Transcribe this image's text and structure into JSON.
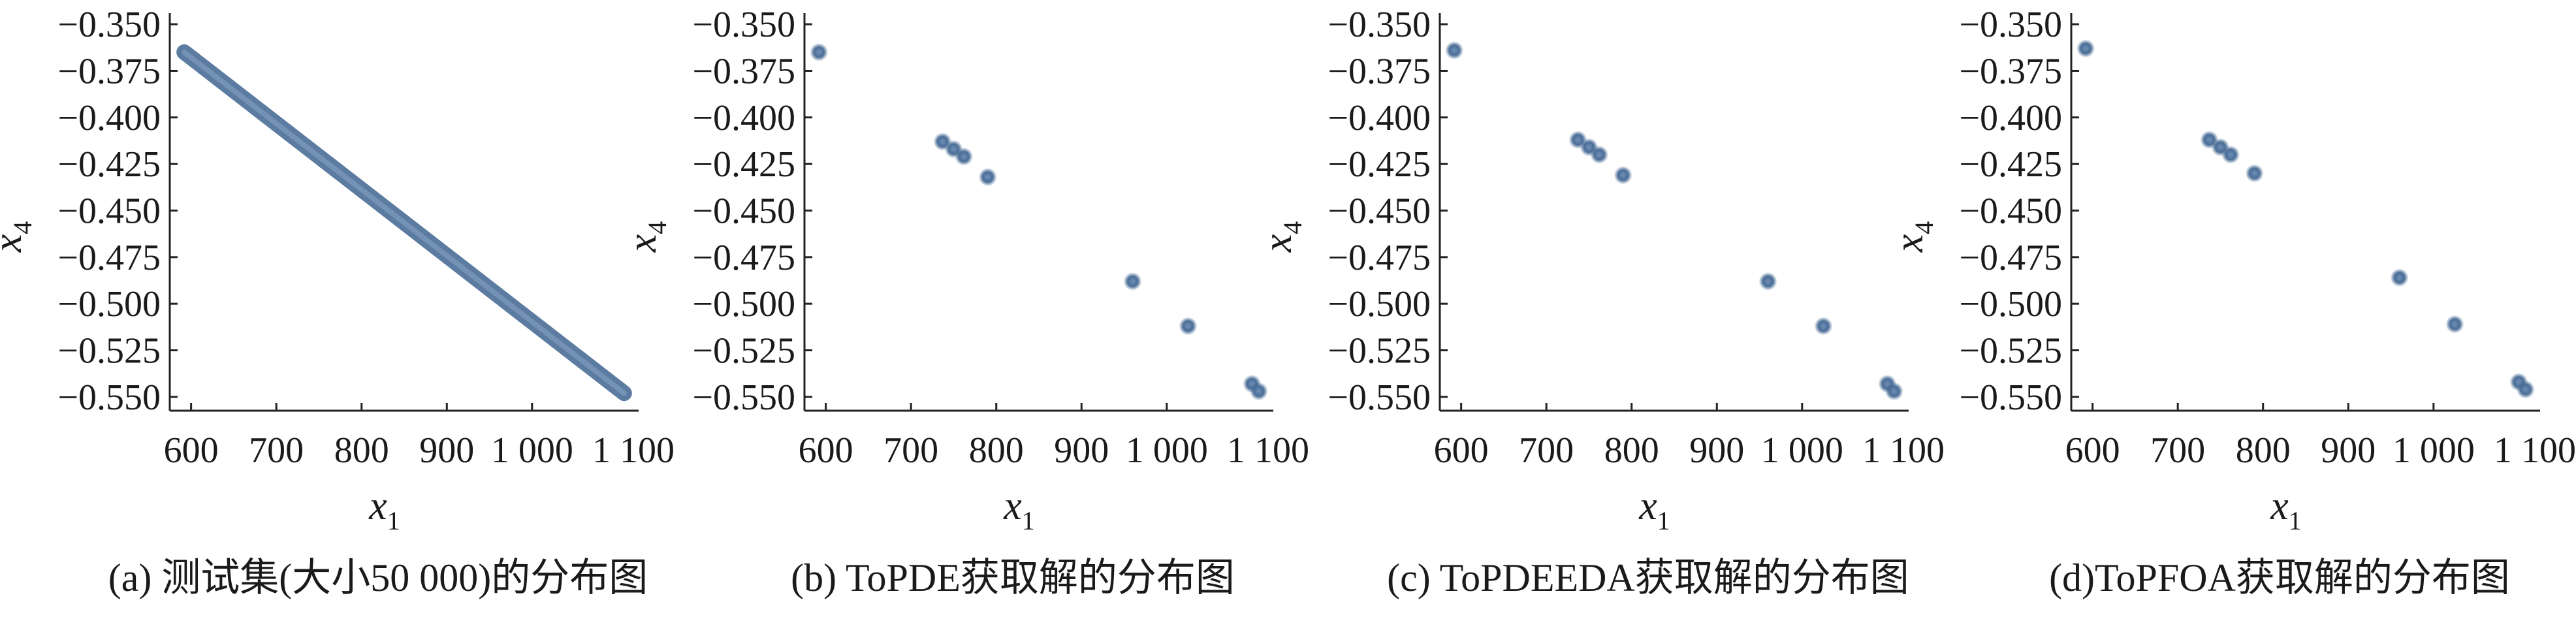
{
  "chart_data": [
    {
      "type": "scatter",
      "caption": "(a) 测试集(大小50 000)的分布图",
      "xlabel": "x",
      "xlabel_sub": "1",
      "ylabel": "x",
      "ylabel_sub": "4",
      "xlim": [
        575,
        1125
      ],
      "ylim": [
        -0.5525,
        -0.3475
      ],
      "xticks": [
        600,
        700,
        800,
        900,
        1000
      ],
      "xtick_labels": [
        "600",
        "700",
        "800",
        "900",
        "1 000"
      ],
      "xtick_edge_label": "1 100",
      "yticks": [
        -0.35,
        -0.375,
        -0.4,
        -0.425,
        -0.45,
        -0.475,
        -0.5,
        -0.525,
        -0.55
      ],
      "ytick_labels": [
        "−0.350",
        "−0.375",
        "−0.400",
        "−0.425",
        "−0.450",
        "−0.475",
        "−0.500",
        "−0.525",
        "−0.550"
      ],
      "line_segment": {
        "x": [
          592,
          1108
        ],
        "y": [
          -0.365,
          -0.548
        ]
      },
      "points": [],
      "marker_color": "#4a6d96"
    },
    {
      "type": "scatter",
      "caption": "(b) ToPDE获取解的分布图",
      "xlabel": "x",
      "xlabel_sub": "1",
      "ylabel": "x",
      "ylabel_sub": "4",
      "xlim": [
        575,
        1125
      ],
      "ylim": [
        -0.5525,
        -0.3475
      ],
      "xticks": [
        600,
        700,
        800,
        900,
        1000
      ],
      "xtick_labels": [
        "600",
        "700",
        "800",
        "900",
        "1 000"
      ],
      "xtick_edge_label": "1 100",
      "yticks": [
        -0.35,
        -0.375,
        -0.4,
        -0.425,
        -0.45,
        -0.475,
        -0.5,
        -0.525,
        -0.55
      ],
      "ytick_labels": [
        "−0.350",
        "−0.375",
        "−0.400",
        "−0.425",
        "−0.450",
        "−0.475",
        "−0.500",
        "−0.525",
        "−0.550"
      ],
      "points": [
        {
          "x": 592,
          "y": -0.365
        },
        {
          "x": 737,
          "y": -0.413
        },
        {
          "x": 750,
          "y": -0.417
        },
        {
          "x": 762,
          "y": -0.421
        },
        {
          "x": 790,
          "y": -0.432
        },
        {
          "x": 960,
          "y": -0.488
        },
        {
          "x": 1025,
          "y": -0.512
        },
        {
          "x": 1100,
          "y": -0.543
        },
        {
          "x": 1108,
          "y": -0.547
        }
      ],
      "marker_color": "#4a6d96"
    },
    {
      "type": "scatter",
      "caption": "(c) ToPDEEDA获取解的分布图",
      "xlabel": "x",
      "xlabel_sub": "1",
      "ylabel": "x",
      "ylabel_sub": "4",
      "xlim": [
        575,
        1125
      ],
      "ylim": [
        -0.5525,
        -0.3475
      ],
      "xticks": [
        600,
        700,
        800,
        900,
        1000
      ],
      "xtick_labels": [
        "600",
        "700",
        "800",
        "900",
        "1 000"
      ],
      "xtick_edge_label": "1 100",
      "yticks": [
        -0.35,
        -0.375,
        -0.4,
        -0.425,
        -0.45,
        -0.475,
        -0.5,
        -0.525,
        -0.55
      ],
      "ytick_labels": [
        "−0.350",
        "−0.375",
        "−0.400",
        "−0.425",
        "−0.450",
        "−0.475",
        "−0.500",
        "−0.525",
        "−0.550"
      ],
      "points": [
        {
          "x": 592,
          "y": -0.364
        },
        {
          "x": 737,
          "y": -0.412
        },
        {
          "x": 750,
          "y": -0.416
        },
        {
          "x": 762,
          "y": -0.42
        },
        {
          "x": 790,
          "y": -0.431
        },
        {
          "x": 960,
          "y": -0.488
        },
        {
          "x": 1025,
          "y": -0.512
        },
        {
          "x": 1100,
          "y": -0.543
        },
        {
          "x": 1108,
          "y": -0.547
        }
      ],
      "marker_color": "#4a6d96"
    },
    {
      "type": "scatter",
      "caption": "(d)ToPFOA获取解的分布图",
      "xlabel": "x",
      "xlabel_sub": "1",
      "ylabel": "x",
      "ylabel_sub": "4",
      "xlim": [
        575,
        1125
      ],
      "ylim": [
        -0.5525,
        -0.3475
      ],
      "xticks": [
        600,
        700,
        800,
        900,
        1000
      ],
      "xtick_labels": [
        "600",
        "700",
        "800",
        "900",
        "1 000"
      ],
      "xtick_edge_label": "1 100",
      "yticks": [
        -0.35,
        -0.375,
        -0.4,
        -0.425,
        -0.45,
        -0.475,
        -0.5,
        -0.525,
        -0.55
      ],
      "ytick_labels": [
        "−0.350",
        "−0.375",
        "−0.400",
        "−0.425",
        "−0.450",
        "−0.475",
        "−0.500",
        "−0.525",
        "−0.550"
      ],
      "points": [
        {
          "x": 592,
          "y": -0.363
        },
        {
          "x": 737,
          "y": -0.412
        },
        {
          "x": 750,
          "y": -0.416
        },
        {
          "x": 762,
          "y": -0.42
        },
        {
          "x": 790,
          "y": -0.43
        },
        {
          "x": 960,
          "y": -0.486
        },
        {
          "x": 1025,
          "y": -0.511
        },
        {
          "x": 1100,
          "y": -0.542
        },
        {
          "x": 1108,
          "y": -0.546
        }
      ],
      "marker_color": "#4a6d96"
    }
  ]
}
